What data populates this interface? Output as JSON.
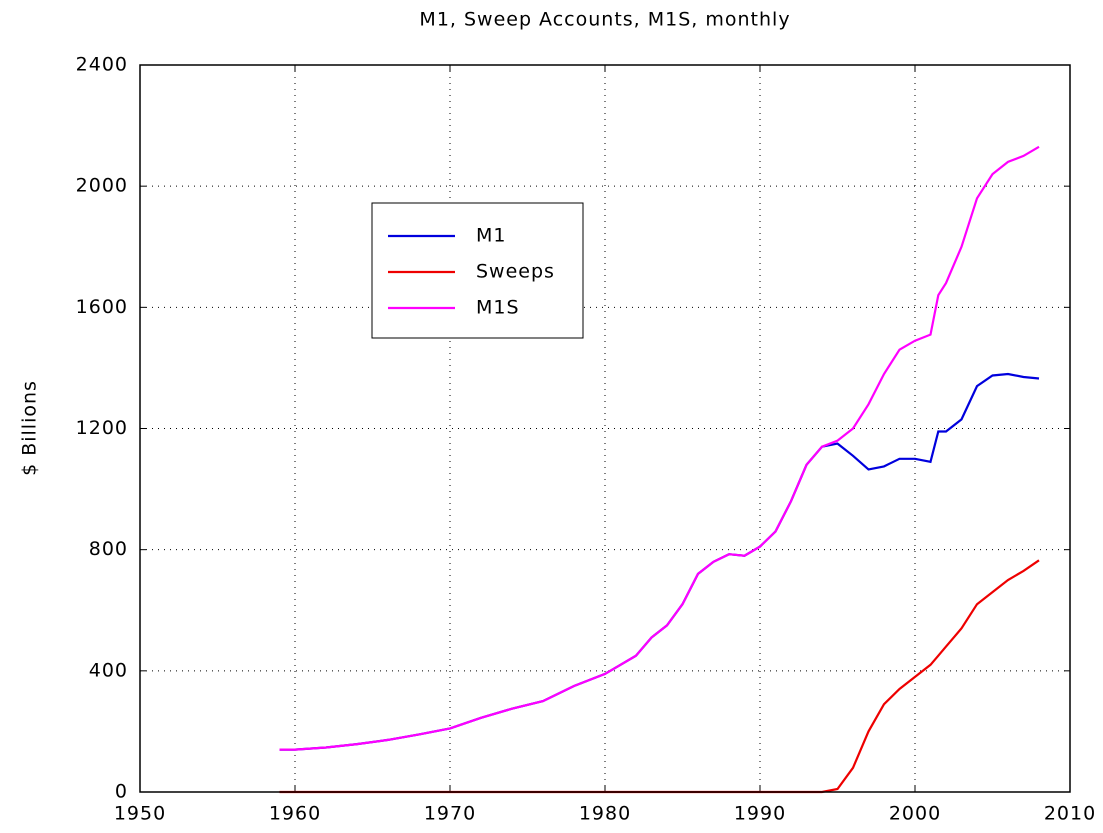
{
  "chart_data": {
    "type": "line",
    "title": "M1, Sweep Accounts, M1S, monthly",
    "y_label": "$ Billions",
    "x": [
      1959,
      1960,
      1962,
      1964,
      1966,
      1968,
      1970,
      1972,
      1974,
      1976,
      1978,
      1980,
      1981,
      1982,
      1983,
      1984,
      1985,
      1986,
      1987,
      1988,
      1989,
      1990,
      1991,
      1992,
      1993,
      1994,
      1995,
      1996,
      1997,
      1998,
      1999,
      2000,
      2001,
      2001.5,
      2002,
      2003,
      2004,
      2005,
      2006,
      2007,
      2008
    ],
    "series": [
      {
        "name": "M1",
        "color": "#0000dd",
        "values": [
          140,
          140,
          147,
          158,
          172,
          190,
          210,
          245,
          275,
          300,
          350,
          390,
          420,
          450,
          510,
          550,
          620,
          720,
          760,
          785,
          780,
          810,
          860,
          960,
          1080,
          1140,
          1150,
          1110,
          1065,
          1075,
          1100,
          1100,
          1090,
          1190,
          1190,
          1230,
          1340,
          1375,
          1380,
          1370,
          1365
        ]
      },
      {
        "name": "Sweeps",
        "color": "#ee0000",
        "values": [
          0,
          0,
          0,
          0,
          0,
          0,
          0,
          0,
          0,
          0,
          0,
          0,
          0,
          0,
          0,
          0,
          0,
          0,
          0,
          0,
          0,
          0,
          0,
          0,
          0,
          0,
          10,
          80,
          200,
          290,
          340,
          380,
          420,
          450,
          480,
          540,
          620,
          660,
          700,
          730,
          765
        ]
      },
      {
        "name": "M1S",
        "color": "#ff00ff",
        "values": [
          140,
          140,
          147,
          158,
          172,
          190,
          210,
          245,
          275,
          300,
          350,
          390,
          420,
          450,
          510,
          550,
          620,
          720,
          760,
          785,
          780,
          810,
          860,
          960,
          1080,
          1140,
          1160,
          1200,
          1280,
          1380,
          1460,
          1490,
          1510,
          1640,
          1680,
          1800,
          1960,
          2040,
          2080,
          2100,
          2130
        ]
      }
    ],
    "xlim": [
      1950,
      2010
    ],
    "xticks": [
      1950,
      1960,
      1970,
      1980,
      1990,
      2000,
      2010
    ],
    "ylim": [
      0,
      2400
    ],
    "yticks": [
      0,
      400,
      800,
      1200,
      1600,
      2000,
      2400
    ],
    "grid": true
  }
}
